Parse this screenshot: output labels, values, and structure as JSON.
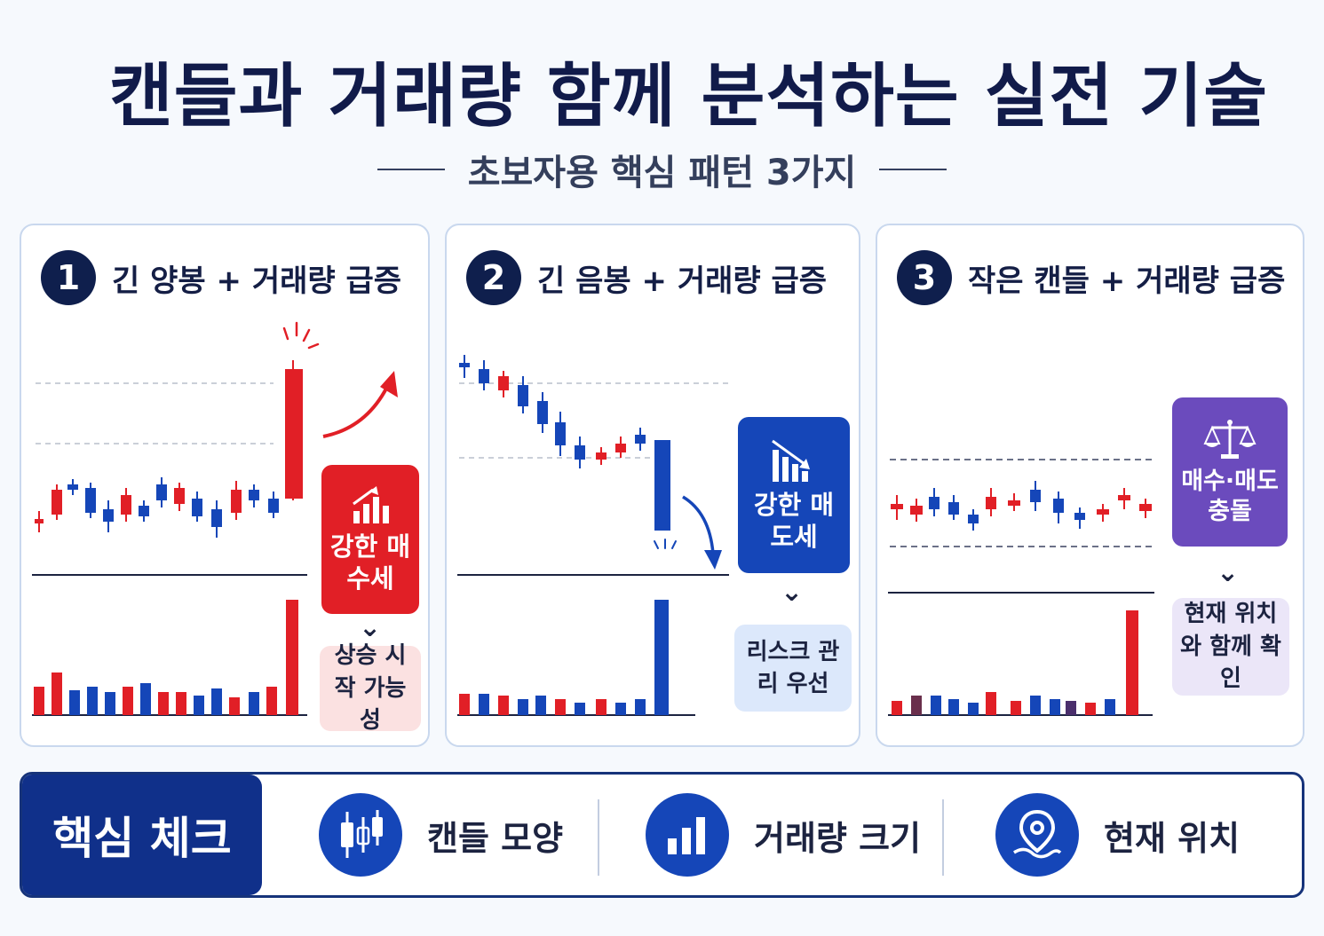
{
  "header": {
    "title": "캔들과 거래량 함께 분석하는 실전 기술",
    "subtitle": "초보자용 핵심 패턴 3가지"
  },
  "colors": {
    "navy": "#0f1f4d",
    "red": "#e11f26",
    "blue": "#1546b8",
    "purple": "#6b4bbd"
  },
  "panels": [
    {
      "number": "1",
      "title": "긴 양봉 + 거래량 급증",
      "signal": {
        "label": "강한 매수세",
        "icon": "rising-bars-icon"
      },
      "note": "상승 시작 가능성"
    },
    {
      "number": "2",
      "title": "긴 음봉 + 거래량 급증",
      "signal": {
        "label": "강한 매도세",
        "icon": "falling-bars-icon"
      },
      "note": "리스크 관리 우선"
    },
    {
      "number": "3",
      "title": "작은 캔들 + 거래량 급증",
      "signal": {
        "label": "매수·매도 충돌",
        "icon": "balance-scale-icon"
      },
      "note": "현재 위치와 함께 확인"
    }
  ],
  "check": {
    "label": "핵심 체크",
    "items": [
      {
        "label": "캔들 모양",
        "icon": "candlestick-icon"
      },
      {
        "label": "거래량 크기",
        "icon": "bar-chart-icon"
      },
      {
        "label": "현재 위치",
        "icon": "location-pin-icon"
      }
    ]
  }
}
